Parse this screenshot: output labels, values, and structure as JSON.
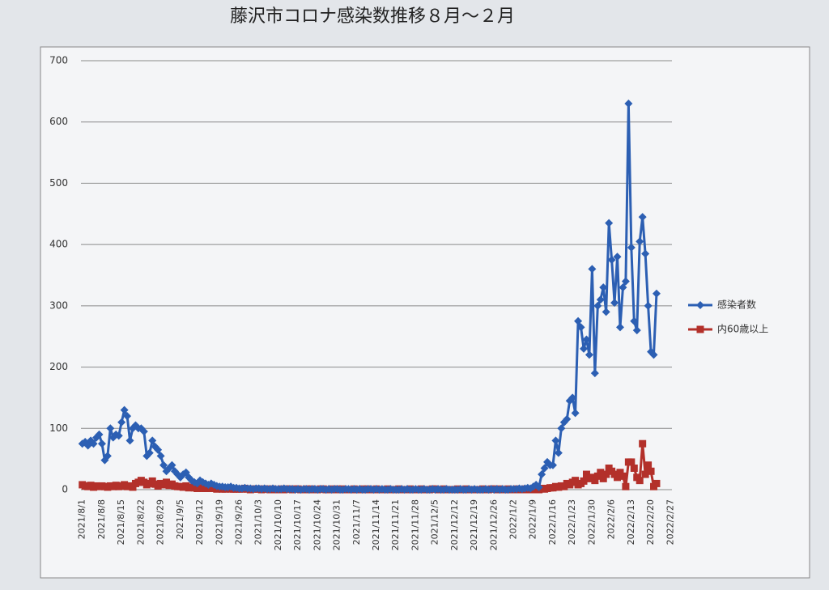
{
  "chart_data": {
    "type": "line",
    "title": "藤沢市コロナ感染数推移８月～２月",
    "categories": [
      "2021/8/1",
      null,
      null,
      null,
      null,
      null,
      null,
      "2021/8/8",
      null,
      null,
      null,
      null,
      null,
      null,
      "2021/8/15",
      null,
      null,
      null,
      null,
      null,
      null,
      "2021/8/22",
      null,
      null,
      null,
      null,
      null,
      null,
      "2021/8/29",
      null,
      null,
      null,
      null,
      null,
      null,
      "2021/9/5",
      null,
      null,
      null,
      null,
      null,
      null,
      "2021/9/12",
      null,
      null,
      null,
      null,
      null,
      null,
      "2021/9/19",
      null,
      null,
      null,
      null,
      null,
      null,
      "2021/9/26",
      null,
      null,
      null,
      null,
      null,
      null,
      "2021/10/3",
      null,
      null,
      null,
      null,
      null,
      null,
      "2021/10/10",
      null,
      null,
      null,
      null,
      null,
      null,
      "2021/10/17",
      null,
      null,
      null,
      null,
      null,
      null,
      "2021/10/24",
      null,
      null,
      null,
      null,
      null,
      null,
      "2021/10/31",
      null,
      null,
      null,
      null,
      null,
      null,
      "2021/11/7",
      null,
      null,
      null,
      null,
      null,
      null,
      "2021/11/14",
      null,
      null,
      null,
      null,
      null,
      null,
      "2021/11/21",
      null,
      null,
      null,
      null,
      null,
      null,
      "2021/11/28",
      null,
      null,
      null,
      null,
      null,
      null,
      "2021/12/5",
      null,
      null,
      null,
      null,
      null,
      null,
      "2021/12/12",
      null,
      null,
      null,
      null,
      null,
      null,
      "2021/12/19",
      null,
      null,
      null,
      null,
      null,
      null,
      "2021/12/26",
      null,
      null,
      null,
      null,
      null,
      null,
      "2022/1/2",
      null,
      null,
      null,
      null,
      null,
      null,
      "2022/1/9",
      null,
      null,
      null,
      null,
      null,
      null,
      "2022/1/16",
      null,
      null,
      null,
      null,
      null,
      null,
      "2022/1/23",
      null,
      null,
      null,
      null,
      null,
      null,
      "2022/1/30",
      null,
      null,
      null,
      null,
      null,
      null,
      "2022/2/6",
      null,
      null,
      null,
      null,
      null,
      null,
      "2022/2/13",
      null,
      null,
      null,
      null,
      null,
      null,
      "2022/2/20",
      null,
      null,
      null,
      null,
      null,
      null,
      "2022/2/27"
    ],
    "series": [
      {
        "name": "感染者数",
        "color": "#2c5fb3",
        "marker": "diamond",
        "values": [
          75,
          78,
          72,
          80,
          75,
          85,
          90,
          75,
          48,
          55,
          100,
          85,
          90,
          88,
          110,
          130,
          120,
          80,
          100,
          105,
          100,
          100,
          95,
          55,
          60,
          80,
          70,
          65,
          55,
          40,
          30,
          35,
          40,
          30,
          25,
          20,
          25,
          28,
          20,
          15,
          12,
          10,
          15,
          12,
          10,
          8,
          10,
          8,
          6,
          5,
          5,
          4,
          4,
          5,
          3,
          3,
          2,
          2,
          3,
          2,
          2,
          1,
          2,
          2,
          1,
          2,
          1,
          1,
          2,
          1,
          1,
          1,
          2,
          1,
          1,
          1,
          0,
          1,
          0,
          1,
          1,
          0,
          1,
          1,
          0,
          1,
          1,
          0,
          1,
          0,
          1,
          1,
          0,
          0,
          1,
          1,
          0,
          1,
          0,
          1,
          0,
          0,
          1,
          1,
          0,
          1,
          0,
          1,
          0,
          0,
          1,
          0,
          0,
          0,
          1,
          0,
          1,
          0,
          0,
          1,
          0,
          0,
          1,
          0,
          0,
          1,
          0,
          1,
          0,
          0,
          1,
          0,
          0,
          0,
          0,
          1,
          0,
          0,
          1,
          0,
          1,
          0,
          0,
          0,
          1,
          0,
          1,
          0,
          1,
          0,
          1,
          0,
          0,
          1,
          1,
          1,
          2,
          1,
          2,
          3,
          2,
          5,
          8,
          4,
          25,
          35,
          45,
          40,
          40,
          80,
          60,
          100,
          110,
          115,
          145,
          150,
          125,
          275,
          265,
          230,
          245,
          220,
          360,
          190,
          300,
          310,
          330,
          290,
          435,
          375,
          305,
          380,
          265,
          330,
          340,
          630,
          395,
          275,
          260,
          405,
          445,
          385,
          300,
          225,
          220,
          320,
          null,
          null,
          null,
          null,
          null
        ]
      },
      {
        "name": "内60歳以上",
        "color": "#b3302a",
        "marker": "square",
        "values": [
          8,
          6,
          5,
          7,
          4,
          6,
          5,
          6,
          5,
          4,
          6,
          5,
          7,
          5,
          6,
          8,
          5,
          6,
          4,
          10,
          12,
          15,
          12,
          8,
          10,
          14,
          9,
          6,
          10,
          8,
          12,
          7,
          9,
          6,
          5,
          5,
          4,
          6,
          3,
          4,
          3,
          2,
          3,
          2,
          2,
          2,
          3,
          2,
          1,
          2,
          1,
          1,
          2,
          1,
          1,
          1,
          1,
          1,
          2,
          1,
          0,
          1,
          1,
          1,
          0,
          1,
          1,
          0,
          1,
          0,
          0,
          1,
          0,
          1,
          1,
          0,
          1,
          1,
          0,
          0,
          1,
          0,
          1,
          0,
          0,
          1,
          1,
          0,
          0,
          1,
          0,
          1,
          0,
          1,
          0,
          0,
          0,
          1,
          0,
          0,
          1,
          0,
          1,
          0,
          0,
          1,
          0,
          0,
          0,
          1,
          0,
          0,
          0,
          1,
          0,
          0,
          0,
          1,
          0,
          0,
          0,
          1,
          0,
          0,
          0,
          1,
          1,
          0,
          0,
          1,
          0,
          0,
          0,
          0,
          1,
          0,
          0,
          1,
          0,
          0,
          0,
          0,
          0,
          1,
          0,
          0,
          1,
          1,
          0,
          1,
          0,
          0,
          1,
          0,
          0,
          1,
          0,
          0,
          1,
          0,
          1,
          0,
          1,
          0,
          2,
          1,
          2,
          3,
          3,
          5,
          4,
          6,
          5,
          10,
          8,
          12,
          15,
          8,
          10,
          14,
          25,
          18,
          20,
          15,
          22,
          28,
          18,
          25,
          35,
          30,
          25,
          20,
          28,
          22,
          5,
          45,
          45,
          35,
          20,
          15,
          75,
          25,
          40,
          30,
          5,
          10,
          null,
          null,
          null,
          null,
          null
        ]
      }
    ],
    "ylim": [
      0,
      700
    ],
    "yticks": [
      0,
      100,
      200,
      300,
      400,
      500,
      600,
      700
    ],
    "grid": true
  }
}
